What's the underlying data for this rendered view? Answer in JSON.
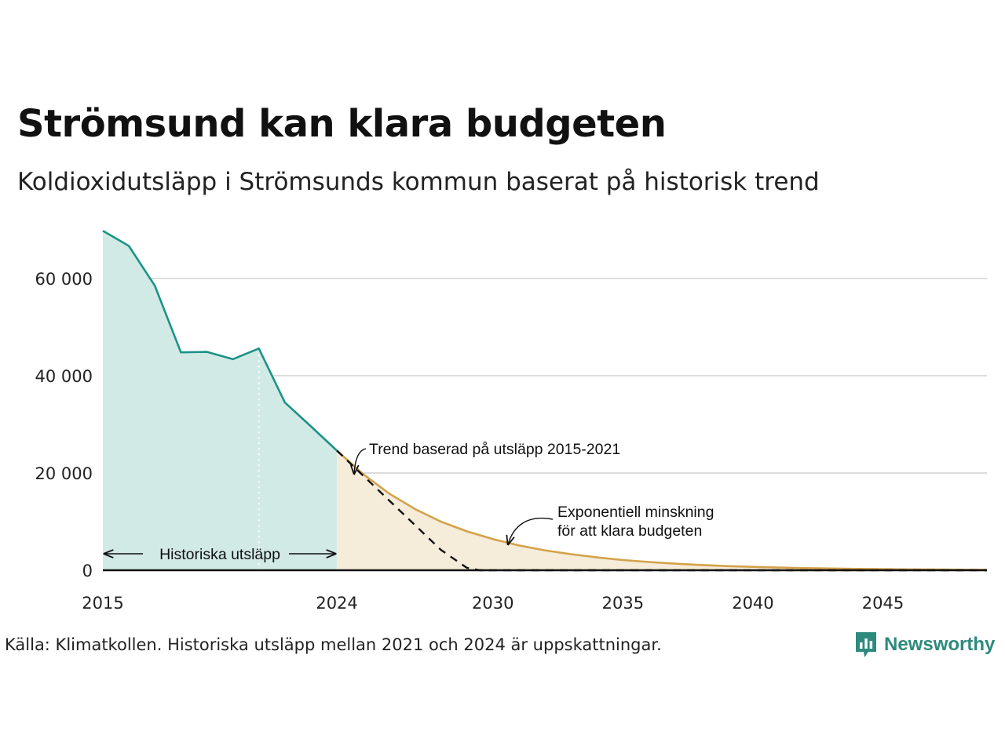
{
  "title": "Strömsund kan klara budgeten",
  "subtitle": "Koldioxidutsläpp i Strömsunds kommun baserat på historisk trend",
  "source": "Källa: Klimatkollen. Historiska utsläpp mellan 2021 och 2024 är uppskattningar.",
  "logo": {
    "text": "Newsworthy",
    "icon": "newsworthy-bar-chart-icon"
  },
  "colors": {
    "historical_line": "#1b9485",
    "historical_fill": "#d2eae6",
    "budget_line": "#d4a24a",
    "budget_fill": "#f5ecd9",
    "trend_line": "#111111",
    "grid": "#dddddd",
    "logo": "#2d8a7c"
  },
  "chart_data": {
    "type": "area",
    "xlim": [
      2015,
      2049
    ],
    "ylim": [
      0,
      70000
    ],
    "grid": true,
    "x_ticks": [
      2015,
      2024,
      2030,
      2035,
      2040,
      2045
    ],
    "x_tick_labels": [
      "2015",
      "2024",
      "2030",
      "2035",
      "2040",
      "2045"
    ],
    "y_ticks": [
      0,
      20000,
      40000,
      60000
    ],
    "y_tick_labels": [
      "0",
      "20 000",
      "40 000",
      "60 000"
    ],
    "dotted_marker_x": 2021,
    "series": [
      {
        "key": "historical",
        "style": "solid-area",
        "x": [
          2015,
          2016,
          2017,
          2018,
          2019,
          2020,
          2021,
          2022,
          2023,
          2024
        ],
        "y": [
          69800,
          66700,
          58500,
          44800,
          44900,
          43400,
          45600,
          34500,
          29600,
          24600
        ]
      },
      {
        "key": "budget",
        "name": "Exponentiell minskning för att klara budgeten",
        "style": "solid-area",
        "x": [
          2024,
          2025,
          2026,
          2027,
          2028,
          2029,
          2030,
          2031,
          2032,
          2033,
          2034,
          2035,
          2036,
          2037,
          2038,
          2039,
          2040,
          2041,
          2042,
          2043,
          2044,
          2045,
          2046,
          2047,
          2048,
          2049
        ],
        "y": [
          24600,
          19800,
          15800,
          12600,
          10000,
          8000,
          6400,
          5100,
          4100,
          3300,
          2650,
          2100,
          1700,
          1350,
          1080,
          860,
          690,
          550,
          440,
          350,
          280,
          225,
          180,
          145,
          115,
          90
        ]
      },
      {
        "key": "trend",
        "name": "Trend baserad på utsläpp 2015-2021",
        "style": "dashed",
        "x": [
          2024,
          2025,
          2026,
          2027,
          2028,
          2029,
          2029.5,
          2030,
          2049
        ],
        "y": [
          24600,
          19500,
          14400,
          9300,
          4200,
          500,
          0,
          0,
          0
        ]
      }
    ],
    "annotations": [
      {
        "text_lines": [
          "Historiska utsläpp"
        ],
        "type": "range-arrow",
        "x_from": 2015,
        "x_to": 2024
      },
      {
        "text_lines": [
          "Trend baserad på utsläpp 2015-2021"
        ],
        "type": "curved-arrow",
        "target_series": "trend"
      },
      {
        "text_lines": [
          "Exponentiell minskning",
          "för att klara budgeten"
        ],
        "type": "curved-arrow",
        "target_series": "budget"
      }
    ]
  }
}
